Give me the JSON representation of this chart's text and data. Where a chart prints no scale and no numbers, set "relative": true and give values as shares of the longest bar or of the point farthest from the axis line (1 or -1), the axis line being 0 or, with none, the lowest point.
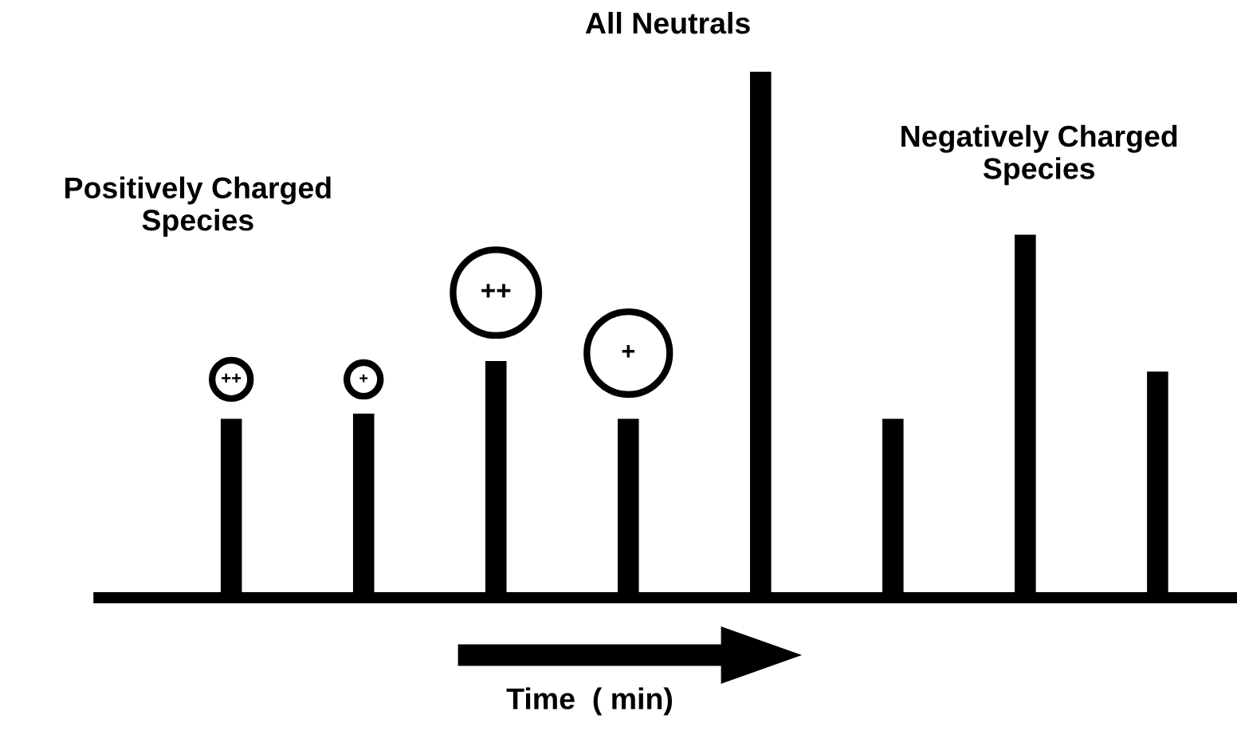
{
  "chart_data": {
    "type": "bar",
    "relative": true,
    "xlabel": "Time  ( min)",
    "categories": [
      null,
      null,
      null,
      null,
      null,
      null,
      null,
      null
    ],
    "values": [
      0.34,
      0.35,
      0.45,
      0.34,
      1,
      0.34,
      0.69,
      0.43
    ],
    "color": "#000000",
    "annotations": [
      "Positively Charged\nSpecies",
      "All Neutrals",
      "Negatively Charged\nSpecies",
      "++",
      "+",
      "++",
      "+"
    ],
    "grid": false,
    "legend": false
  }
}
